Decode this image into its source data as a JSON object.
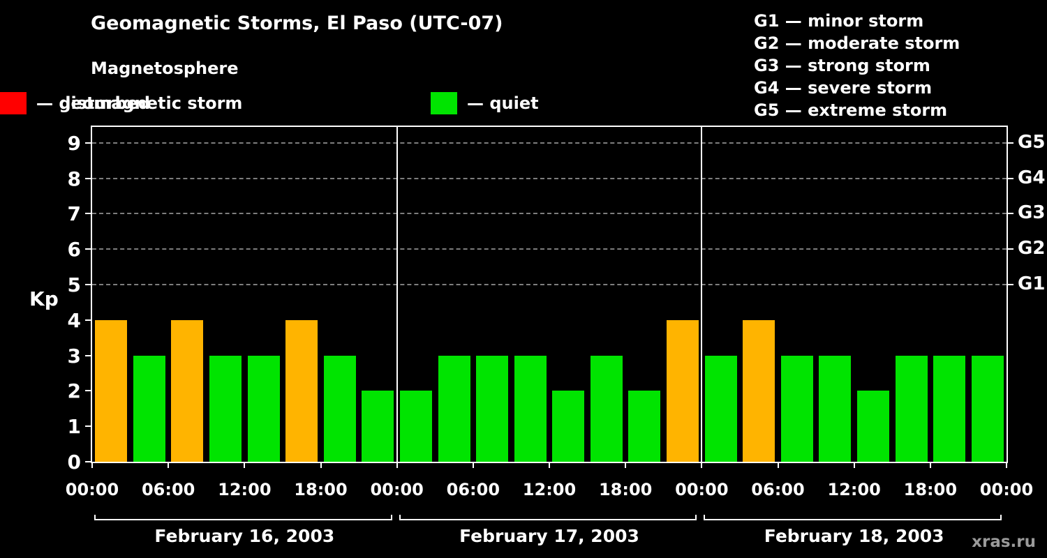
{
  "title": "Geomagnetic Storms, El Paso (UTC-07)",
  "subtitle": "Magnetosphere",
  "watermark": "xras.ru",
  "legend": {
    "items": [
      {
        "label": "— quiet",
        "color": "#00e400"
      },
      {
        "label": "— disturbed",
        "color": "#ffb400"
      },
      {
        "label": "— geomagnetic storm",
        "color": "#ff0000"
      }
    ]
  },
  "g_scale": {
    "lines": [
      "G1 — minor storm",
      "G2 — moderate storm",
      "G3 — strong storm",
      "G4 — severe storm",
      "G5 — extreme storm"
    ]
  },
  "chart_data": {
    "type": "bar",
    "title": "Geomagnetic Storms, El Paso (UTC-07)",
    "ylabel": "Kp",
    "ylim": [
      0,
      9.45
    ],
    "yticks": [
      0,
      1,
      2,
      3,
      4,
      5,
      6,
      7,
      8,
      9
    ],
    "dashed_gridlines_at": [
      5,
      6,
      7,
      8,
      9
    ],
    "right_axis": [
      {
        "label": "G1",
        "kp": 5
      },
      {
        "label": "G2",
        "kp": 6
      },
      {
        "label": "G3",
        "kp": 7
      },
      {
        "label": "G4",
        "kp": 8
      },
      {
        "label": "G5",
        "kp": 9
      }
    ],
    "hours_per_bar": 3,
    "x_tick_labels": [
      "00:00",
      "06:00",
      "12:00",
      "18:00",
      "00:00",
      "06:00",
      "12:00",
      "18:00",
      "00:00",
      "06:00",
      "12:00",
      "18:00",
      "00:00"
    ],
    "days": [
      {
        "date": "February 16, 2003",
        "kp_values": [
          4,
          3,
          4,
          3,
          3,
          4,
          3,
          2
        ]
      },
      {
        "date": "February 17, 2003",
        "kp_values": [
          2,
          3,
          3,
          3,
          2,
          3,
          2,
          4
        ]
      },
      {
        "date": "February 18, 2003",
        "kp_values": [
          3,
          4,
          3,
          3,
          2,
          3,
          3,
          3
        ]
      }
    ],
    "color_thresholds": {
      "quiet_max_kp": 3,
      "disturbed_max_kp": 4,
      "quiet_color": "#00e400",
      "disturbed_color": "#ffb400",
      "storm_color": "#ff0000"
    },
    "legend_position": "top-left",
    "grid": "dashed horizontal lines at Kp 5-9 only"
  }
}
